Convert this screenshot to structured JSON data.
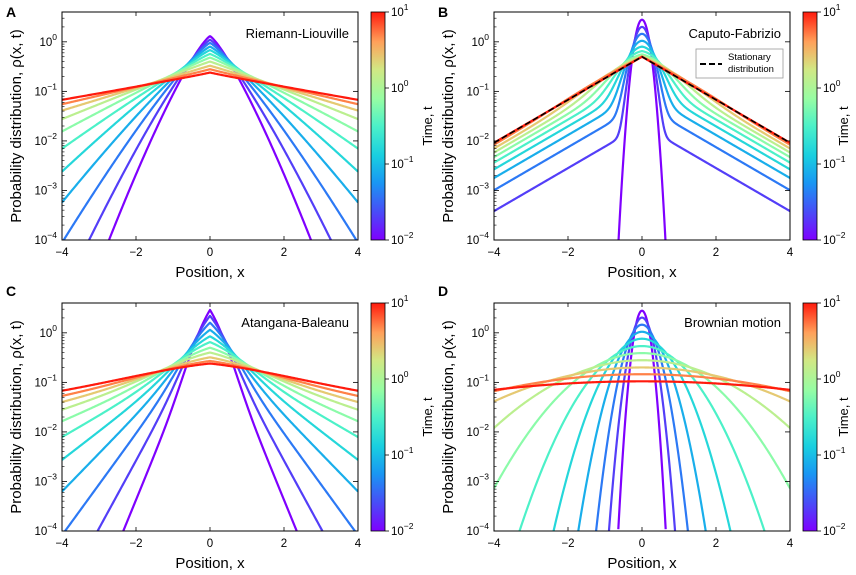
{
  "chart_data": [
    {
      "type": "line",
      "panel": "A",
      "title": "Riemann-Liouville",
      "model": "rl",
      "xlabel": "Position, x",
      "ylabel": "Probability distribution, ρ(x, t)",
      "colorbar_label": "Time, t",
      "xlim": [
        -4,
        4
      ],
      "ylim": [
        0.0001,
        4
      ],
      "yscale": "log",
      "xticks": [
        -4,
        -2,
        0,
        2,
        4
      ],
      "xtick_labels": [
        "−4",
        "−2",
        "0",
        "2",
        "4"
      ],
      "ytick_exponents": [
        -4,
        -3,
        -2,
        -1,
        0
      ],
      "colorbar_exponents": [
        -2,
        -1,
        0,
        1
      ],
      "times": [
        0.01,
        0.0193,
        0.0373,
        0.072,
        0.139,
        0.268,
        0.518,
        1.0,
        1.93,
        3.73,
        7.2
      ],
      "series_peaks": [
        1.3,
        1.1,
        0.95,
        0.8,
        0.68,
        0.57,
        0.48,
        0.4,
        0.33,
        0.28,
        0.24
      ],
      "series_values_at_x4": [
        0.0001,
        0.0001,
        0.0001,
        0.0001,
        0.0002,
        0.0009,
        0.003,
        0.008,
        0.016,
        0.028,
        0.04
      ],
      "legend": null
    },
    {
      "type": "line",
      "panel": "B",
      "title": "Caputo-Fabrizio",
      "model": "cf",
      "xlabel": "Position, x",
      "ylabel": "Probability distribution, ρ(x, t)",
      "colorbar_label": "Time, t",
      "xlim": [
        -4,
        4
      ],
      "ylim": [
        0.0001,
        4
      ],
      "yscale": "log",
      "xticks": [
        -4,
        -2,
        0,
        2,
        4
      ],
      "xtick_labels": [
        "−4",
        "−2",
        "0",
        "2",
        "4"
      ],
      "ytick_exponents": [
        -4,
        -3,
        -2,
        -1,
        0
      ],
      "colorbar_exponents": [
        -2,
        -1,
        0,
        1
      ],
      "times": [
        0.01,
        0.0193,
        0.0373,
        0.072,
        0.139,
        0.268,
        0.518,
        1.0,
        1.93,
        3.73,
        7.2
      ],
      "series_peaks": [
        2.8,
        2.0,
        1.45,
        1.05,
        0.8,
        0.65,
        0.56,
        0.52,
        0.5,
        0.5,
        0.5
      ],
      "stationary": {
        "peak": 0.5,
        "decay_rate": 1.0
      },
      "legend": "Stationary distribution",
      "legend_lines": [
        "Stationary",
        "distribution"
      ]
    },
    {
      "type": "line",
      "panel": "C",
      "title": "Atangana-Baleanu",
      "model": "ab",
      "xlabel": "Position, x",
      "ylabel": "Probability distribution, ρ(x, t)",
      "colorbar_label": "Time, t",
      "xlim": [
        -4,
        4
      ],
      "ylim": [
        0.0001,
        4
      ],
      "yscale": "log",
      "xticks": [
        -4,
        -2,
        0,
        2,
        4
      ],
      "xtick_labels": [
        "−4",
        "−2",
        "0",
        "2",
        "4"
      ],
      "ytick_exponents": [
        -4,
        -3,
        -2,
        -1,
        0
      ],
      "colorbar_exponents": [
        -2,
        -1,
        0,
        1
      ],
      "times": [
        0.01,
        0.0193,
        0.0373,
        0.072,
        0.139,
        0.268,
        0.518,
        1.0,
        1.93,
        3.73,
        7.2
      ],
      "series_peaks": [
        2.9,
        2.2,
        1.6,
        1.15,
        0.85,
        0.65,
        0.5,
        0.4,
        0.32,
        0.27,
        0.24
      ],
      "legend": null
    },
    {
      "type": "line",
      "panel": "D",
      "title": "Brownian motion",
      "model": "bm",
      "xlabel": "Position, x",
      "ylabel": "Probability distribution, ρ(x, t)",
      "colorbar_label": "Time, t",
      "xlim": [
        -4,
        4
      ],
      "ylim": [
        0.0001,
        4
      ],
      "yscale": "log",
      "xticks": [
        -4,
        -2,
        0,
        2,
        4
      ],
      "xtick_labels": [
        "−4",
        "−2",
        "0",
        "2",
        "4"
      ],
      "ytick_exponents": [
        -4,
        -3,
        -2,
        -1,
        0
      ],
      "colorbar_exponents": [
        -2,
        -1,
        0,
        1
      ],
      "times": [
        0.01,
        0.0193,
        0.0373,
        0.072,
        0.139,
        0.268,
        0.518,
        1.0,
        1.93,
        3.73,
        7.2
      ],
      "series_peaks": [
        2.8,
        2.03,
        1.46,
        1.05,
        0.76,
        0.54,
        0.39,
        0.28,
        0.2,
        0.146,
        0.105
      ],
      "legend": null
    }
  ]
}
